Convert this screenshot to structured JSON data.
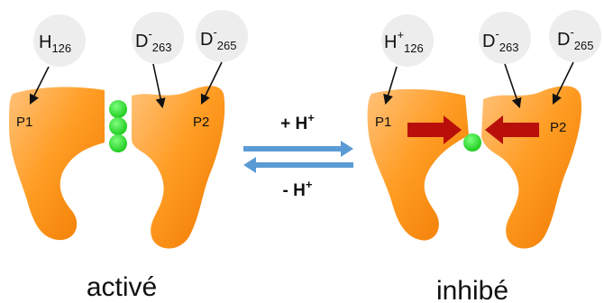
{
  "colors": {
    "protein_light": "#ffb45a",
    "protein_mid": "#ff9a1f",
    "protein_dark": "#f07800",
    "bubble": "#ededed",
    "green_ball": "#22dd22",
    "red_arrow": "#b80f0a",
    "blue_arrow": "#5b9bd5",
    "text": "#111111"
  },
  "left_state": {
    "bubbles": [
      {
        "base": "H",
        "sup": "",
        "sub": "126"
      },
      {
        "base": "D",
        "sup": "-",
        "sub": "263"
      },
      {
        "base": "D",
        "sup": "-",
        "sub": "265"
      }
    ],
    "p1_label": "P1",
    "p2_label": "P2",
    "caption": "activé"
  },
  "right_state": {
    "bubbles": [
      {
        "base": "H",
        "sup": "+",
        "sub": "126"
      },
      {
        "base": "D",
        "sup": "-",
        "sub": "263"
      },
      {
        "base": "D",
        "sup": "-",
        "sub": "265"
      }
    ],
    "p1_label": "P1",
    "p2_label": "P2",
    "caption": "inhibé"
  },
  "equilibrium": {
    "forward_label": "+ H",
    "forward_sup": "+",
    "reverse_label": "- H",
    "reverse_sup": "+"
  }
}
